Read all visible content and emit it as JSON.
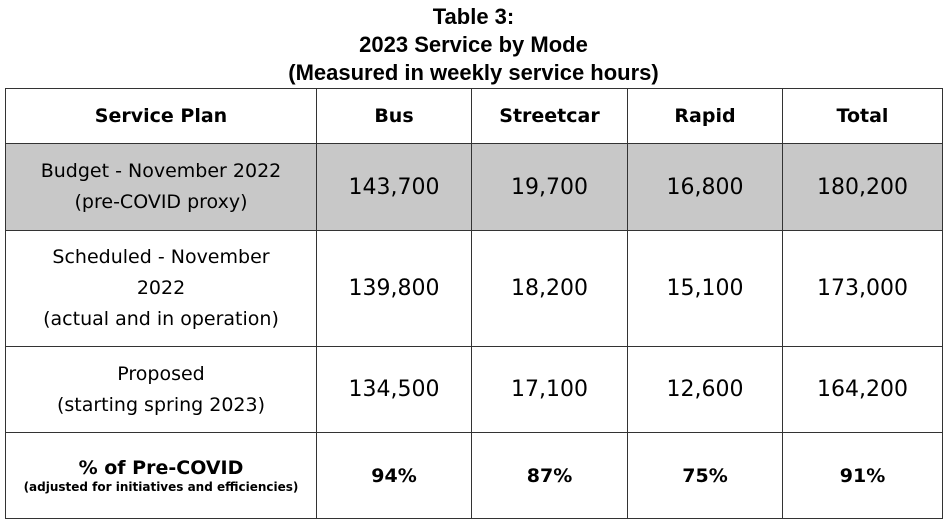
{
  "title": {
    "line1": "Table 3:",
    "line2": "2023 Service by Mode",
    "line3": "(Measured in weekly service hours)"
  },
  "table": {
    "headers": [
      "Service Plan",
      "Bus",
      "Streetcar",
      "Rapid",
      "Total"
    ],
    "rows": [
      {
        "label_lines": [
          "Budget - November 2022",
          "(pre-COVID proxy)"
        ],
        "values": [
          "143,700",
          "19,700",
          "16,800",
          "180,200"
        ],
        "shaded": true
      },
      {
        "label_lines": [
          "Scheduled - November",
          "2022",
          "(actual and in operation)"
        ],
        "values": [
          "139,800",
          "18,200",
          "15,100",
          "173,000"
        ],
        "shaded": false
      },
      {
        "label_lines": [
          "Proposed",
          "(starting spring 2023)"
        ],
        "values": [
          "134,500",
          "17,100",
          "12,600",
          "164,200"
        ],
        "shaded": false
      }
    ],
    "pct_row": {
      "label": "% of Pre-COVID",
      "sublabel": "(adjusted for initiatives and efficiencies)",
      "values": [
        "94%",
        "87%",
        "75%",
        "91%"
      ]
    },
    "shade_color": "#c8c8c8"
  }
}
